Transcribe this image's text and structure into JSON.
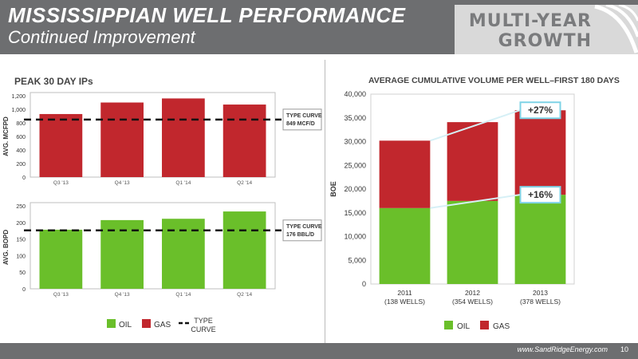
{
  "header": {
    "title": "MISSISSIPPIAN WELL PERFORMANCE",
    "subtitle": "Continued Improvement",
    "badge_line1": "MULTI-YEAR",
    "badge_line2": "GROWTH"
  },
  "footer": {
    "url": "www.SandRidgeEnergy.com",
    "page_number": "10"
  },
  "colors": {
    "header_gray": "#6d6e70",
    "gas_red": "#c1272d",
    "oil_green": "#6abf2a",
    "callout_blue": "#7fd3e6"
  },
  "chart_data": [
    {
      "type": "bar",
      "title": "PEAK 30 DAY IPs",
      "ylabel": "AVG. MCFPD",
      "categories": [
        "Q3 '13",
        "Q4 '13",
        "Q1 '14",
        "Q2 '14"
      ],
      "series": [
        {
          "name": "GAS",
          "values": [
            930,
            1100,
            1160,
            1070
          ]
        }
      ],
      "ylim": [
        0,
        1200
      ],
      "yticks": [
        "0",
        "200",
        "400",
        "600",
        "800",
        "1,000",
        "1,200"
      ],
      "type_curve": {
        "value": 849,
        "label_line1": "TYPE CURVE",
        "label_line2": "849 MCF/D"
      },
      "color": "#c1272d"
    },
    {
      "type": "bar",
      "ylabel": "AVG. BOPD",
      "categories": [
        "Q3 '13",
        "Q4 '13",
        "Q1 '14",
        "Q2 '14"
      ],
      "series": [
        {
          "name": "OIL",
          "values": [
            178,
            207,
            211,
            233
          ]
        }
      ],
      "ylim": [
        0,
        250
      ],
      "yticks": [
        "0",
        "50",
        "100",
        "150",
        "200",
        "250"
      ],
      "type_curve": {
        "value": 176,
        "label_line1": "TYPE CURVE",
        "label_line2": "176 BBL/D"
      },
      "color": "#6abf2a"
    },
    {
      "type": "bar",
      "title": "AVERAGE CUMULATIVE VOLUME PER WELL–FIRST 180 DAYS",
      "ylabel": "BOE",
      "stacked": true,
      "categories": [
        "2011",
        "2012",
        "2013"
      ],
      "category_sublabels": [
        "(138 WELLS)",
        "(354 WELLS)",
        "(378 WELLS)"
      ],
      "series": [
        {
          "name": "OIL",
          "values": [
            16000,
            17500,
            18800
          ]
        },
        {
          "name": "GAS",
          "values": [
            14200,
            16600,
            17800
          ]
        }
      ],
      "ylim": [
        0,
        40000
      ],
      "yticks": [
        "0",
        "5,000",
        "10,000",
        "15,000",
        "20,000",
        "25,000",
        "30,000",
        "35,000",
        "40,000"
      ],
      "annotations": [
        "+27%",
        "+16%"
      ]
    }
  ],
  "legend_left": {
    "oil": "OIL",
    "gas": "GAS",
    "type_line1": "TYPE",
    "type_line2": "CURVE"
  },
  "legend_right": {
    "oil": "OIL",
    "gas": "GAS"
  }
}
